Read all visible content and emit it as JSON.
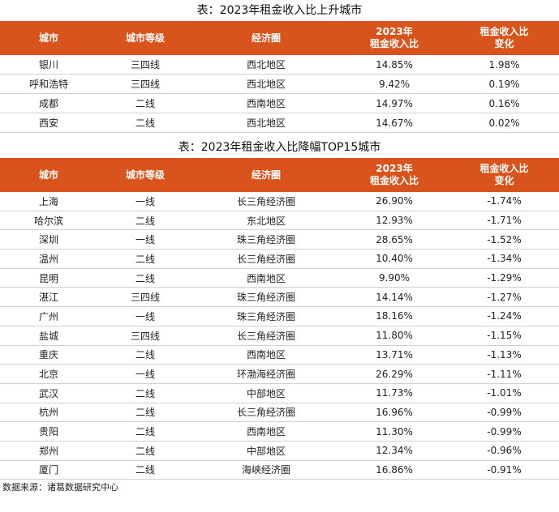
{
  "table1": {
    "title": "表：2023年租金收入比上升城市",
    "headers": [
      "城市",
      "城市等级",
      "经济圈",
      "2023年\n租金收入比",
      "租金收入比\n变化"
    ],
    "rows": [
      [
        "银川",
        "三四线",
        "西北地区",
        "14.85%",
        "1.98%"
      ],
      [
        "呼和浩特",
        "三四线",
        "西北地区",
        "9.42%",
        "0.19%"
      ],
      [
        "成都",
        "二线",
        "西南地区",
        "14.97%",
        "0.16%"
      ],
      [
        "西安",
        "二线",
        "西北地区",
        "14.67%",
        "0.02%"
      ]
    ]
  },
  "table2": {
    "title": "表：2023年租金收入比降幅TOP15城市",
    "headers": [
      "城市",
      "城市等级",
      "经济圈",
      "2023年\n租金收入比",
      "租金收入比\n变化"
    ],
    "rows": [
      [
        "上海",
        "一线",
        "长三角经济圈",
        "26.90%",
        "-1.74%"
      ],
      [
        "哈尔滨",
        "二线",
        "东北地区",
        "12.93%",
        "-1.71%"
      ],
      [
        "深圳",
        "一线",
        "珠三角经济圈",
        "28.65%",
        "-1.52%"
      ],
      [
        "温州",
        "二线",
        "长三角经济圈",
        "10.40%",
        "-1.34%"
      ],
      [
        "昆明",
        "二线",
        "西南地区",
        "9.90%",
        "-1.29%"
      ],
      [
        "湛江",
        "三四线",
        "珠三角经济圈",
        "14.14%",
        "-1.27%"
      ],
      [
        "广州",
        "一线",
        "珠三角经济圈",
        "18.16%",
        "-1.24%"
      ],
      [
        "盐城",
        "三四线",
        "长三角经济圈",
        "11.80%",
        "-1.15%"
      ],
      [
        "重庆",
        "二线",
        "西南地区",
        "13.71%",
        "-1.13%"
      ],
      [
        "北京",
        "一线",
        "环渤海经济圈",
        "26.29%",
        "-1.11%"
      ],
      [
        "武汉",
        "二线",
        "中部地区",
        "11.73%",
        "-1.01%"
      ],
      [
        "杭州",
        "二线",
        "长三角经济圈",
        "16.96%",
        "-0.99%"
      ],
      [
        "贵阳",
        "二线",
        "西南地区",
        "11.30%",
        "-0.99%"
      ],
      [
        "郑州",
        "二线",
        "中部地区",
        "12.34%",
        "-0.96%"
      ],
      [
        "厦门",
        "二线",
        "海峡经济圈",
        "16.86%",
        "-0.91%"
      ]
    ]
  },
  "source": "数据来源：诸葛数据研究中心",
  "colors": {
    "header_bg": "#d9541c",
    "header_text": "#ffffff"
  }
}
